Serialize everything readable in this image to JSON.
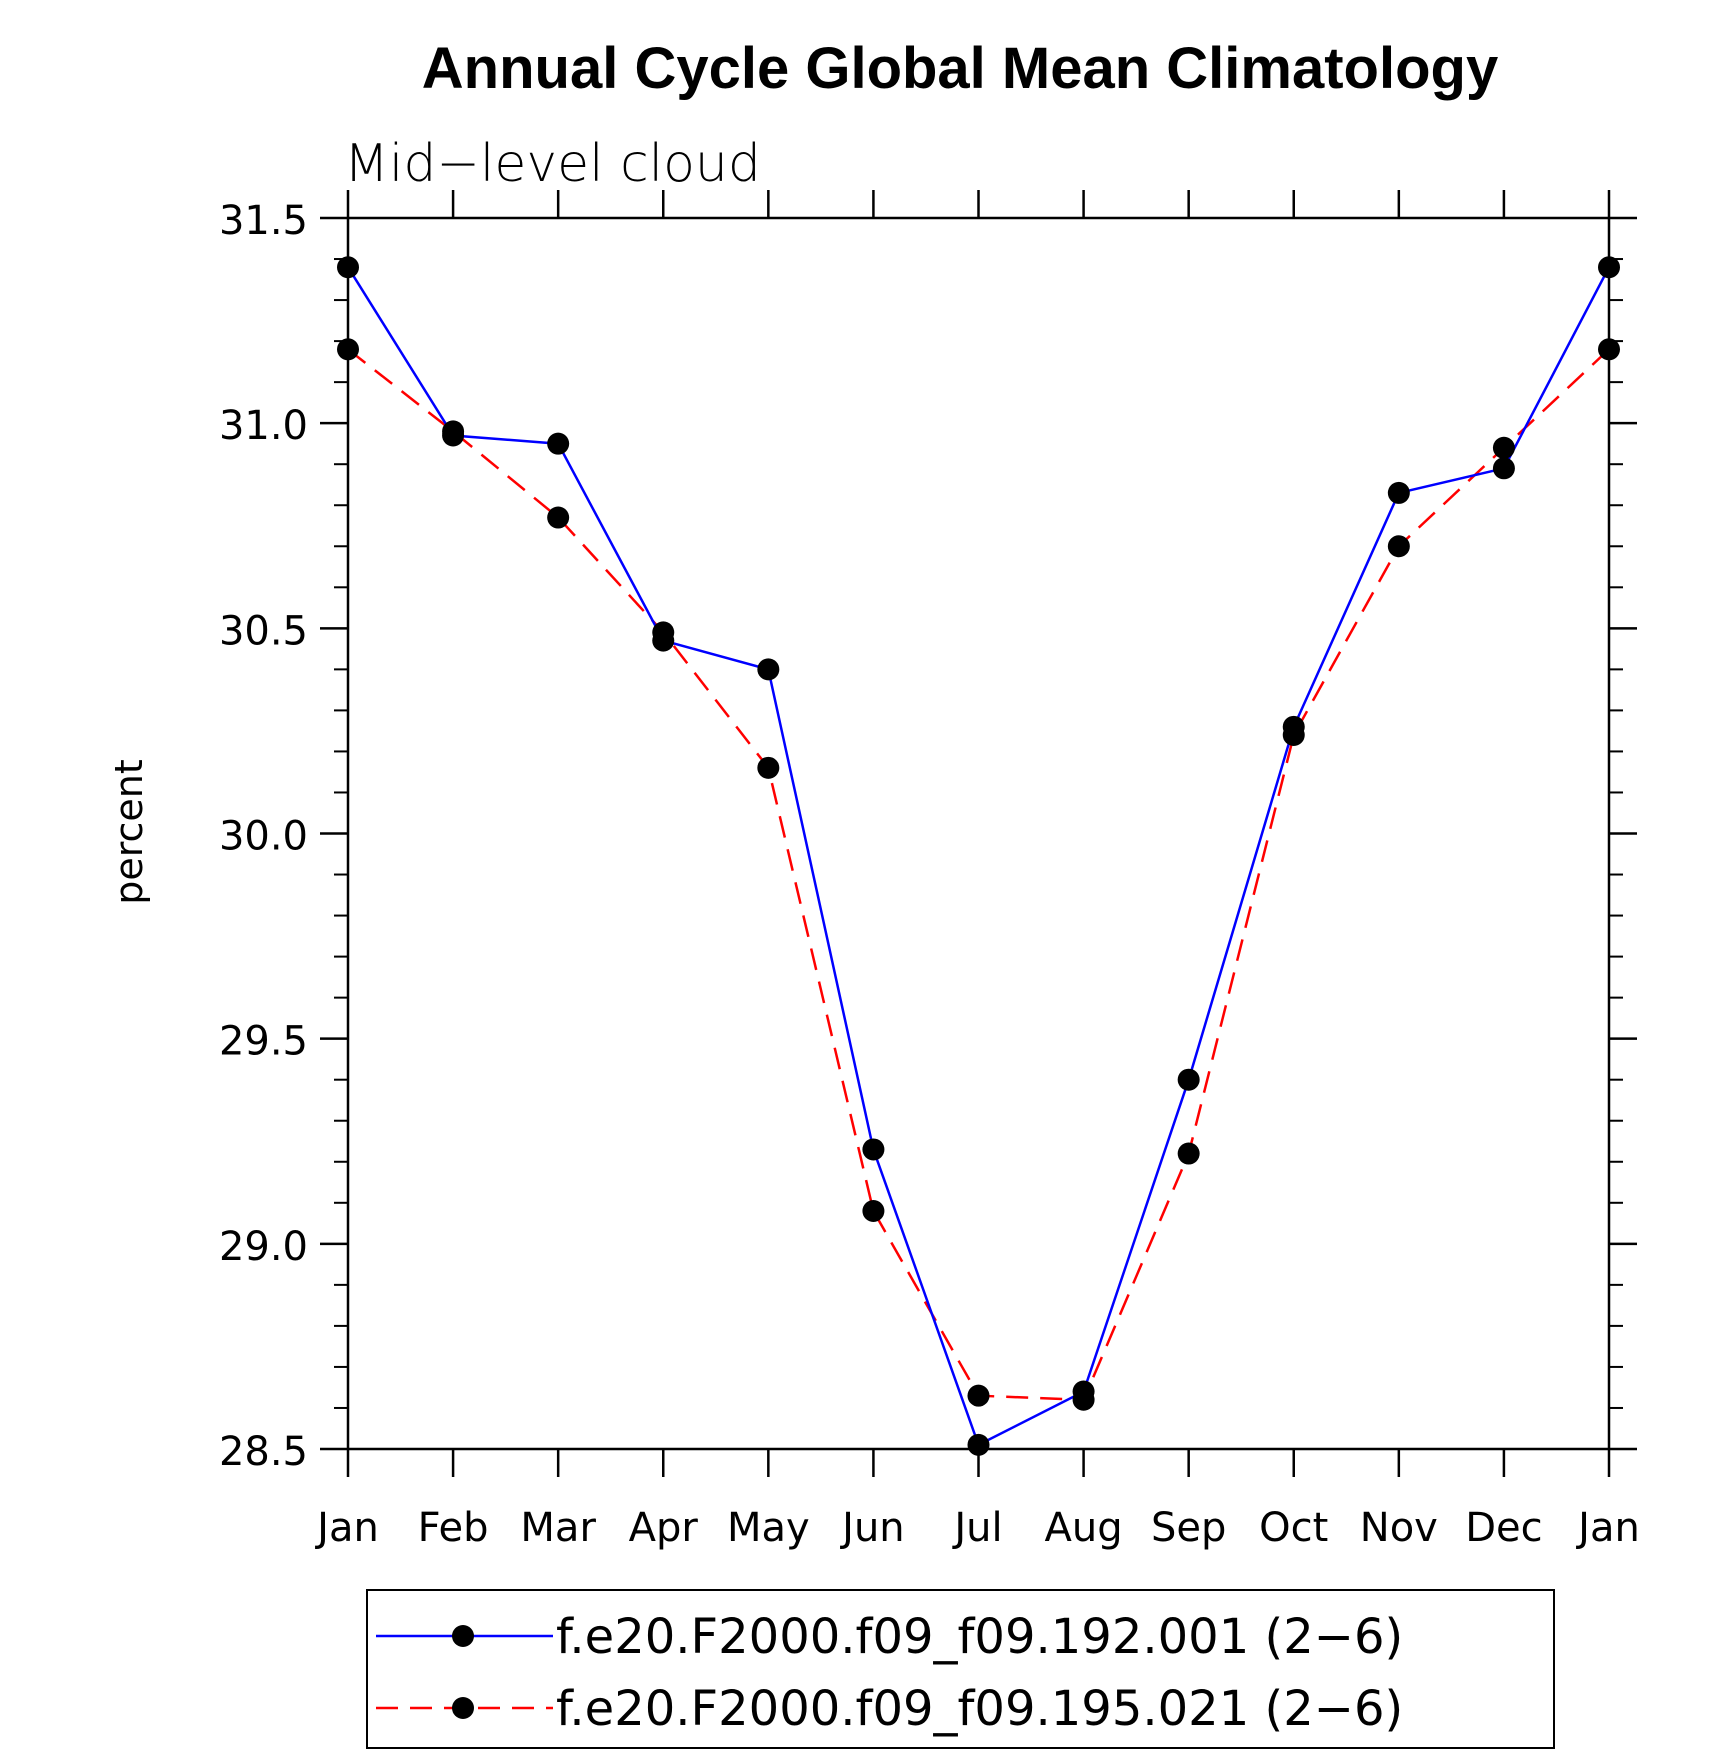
{
  "chart_data": {
    "type": "line",
    "title": "Annual Cycle Global Mean Climatology",
    "subtitle": "Mid−level cloud",
    "xlabel": "",
    "ylabel": "percent",
    "categories": [
      "Jan",
      "Feb",
      "Mar",
      "Apr",
      "May",
      "Jun",
      "Jul",
      "Aug",
      "Sep",
      "Oct",
      "Nov",
      "Dec",
      "Jan"
    ],
    "ylim": [
      28.5,
      31.5
    ],
    "yticks": [
      "31.5",
      "31.0",
      "30.5",
      "30.0",
      "29.5",
      "29.0",
      "28.5"
    ],
    "y_minor_step": 0.1,
    "grid": false,
    "legend_position": "bottom",
    "series": [
      {
        "name": "f.e20.F2000.f09_f09.192.001 (2−6)",
        "color": "#0000ff",
        "dash": "solid",
        "marker": "filled-circle",
        "values": [
          31.38,
          30.97,
          30.95,
          30.47,
          30.4,
          29.23,
          28.51,
          28.64,
          29.4,
          30.26,
          30.83,
          30.89,
          31.38
        ]
      },
      {
        "name": "f.e20.F2000.f09_f09.195.021 (2−6)",
        "color": "#ff0000",
        "dash": "dashed",
        "marker": "filled-circle",
        "values": [
          31.18,
          30.98,
          30.77,
          30.49,
          30.16,
          29.08,
          28.63,
          28.62,
          29.22,
          30.24,
          30.7,
          30.94,
          31.18
        ]
      }
    ]
  }
}
